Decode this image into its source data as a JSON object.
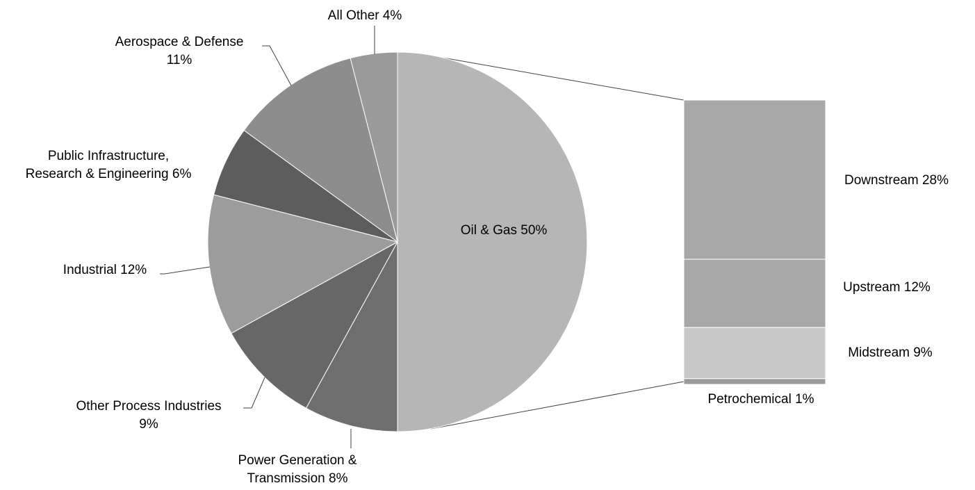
{
  "chart_data": {
    "type": "pie",
    "variant": "bar-of-pie",
    "legend": "none",
    "pie": {
      "slices": [
        {
          "label": "Oil & Gas",
          "value": 50,
          "color": "#b6b6b6",
          "label_lines": [
            "Oil & Gas 50%"
          ]
        },
        {
          "label": "Power Generation & Transmission",
          "value": 8,
          "color": "#6e6e6e",
          "label_lines": [
            "Power Generation &",
            "Transmission 8%"
          ]
        },
        {
          "label": "Other Process Industries",
          "value": 9,
          "color": "#676767",
          "label_lines": [
            "Other Process Industries",
            "9%"
          ]
        },
        {
          "label": "Industrial",
          "value": 12,
          "color": "#9c9c9c",
          "label_lines": [
            "Industrial 12%"
          ]
        },
        {
          "label": "Public Infrastructure, Research & Engineering",
          "value": 6,
          "color": "#5d5d5d",
          "label_lines": [
            "Public Infrastructure,",
            "Research & Engineering 6%"
          ]
        },
        {
          "label": "Aerospace & Defense",
          "value": 11,
          "color": "#8d8d8d",
          "label_lines": [
            "Aerospace & Defense",
            "11%"
          ]
        },
        {
          "label": "All Other",
          "value": 4,
          "color": "#9a9a9a",
          "label_lines": [
            "All Other 4%"
          ]
        }
      ]
    },
    "bar": {
      "parent": "Oil & Gas",
      "segments": [
        {
          "label": "Downstream",
          "value": 28,
          "color": "#a8a8a8",
          "label_lines": [
            "Downstream 28%"
          ]
        },
        {
          "label": "Upstream",
          "value": 12,
          "color": "#a8a8a8",
          "label_lines": [
            "Upstream 12%"
          ]
        },
        {
          "label": "Midstream",
          "value": 9,
          "color": "#c8c8c8",
          "label_lines": [
            "Midstream 9%"
          ]
        },
        {
          "label": "Petrochemical",
          "value": 1,
          "color": "#9a9a9a",
          "label_lines": [
            "Petrochemical 1%"
          ]
        }
      ]
    }
  }
}
